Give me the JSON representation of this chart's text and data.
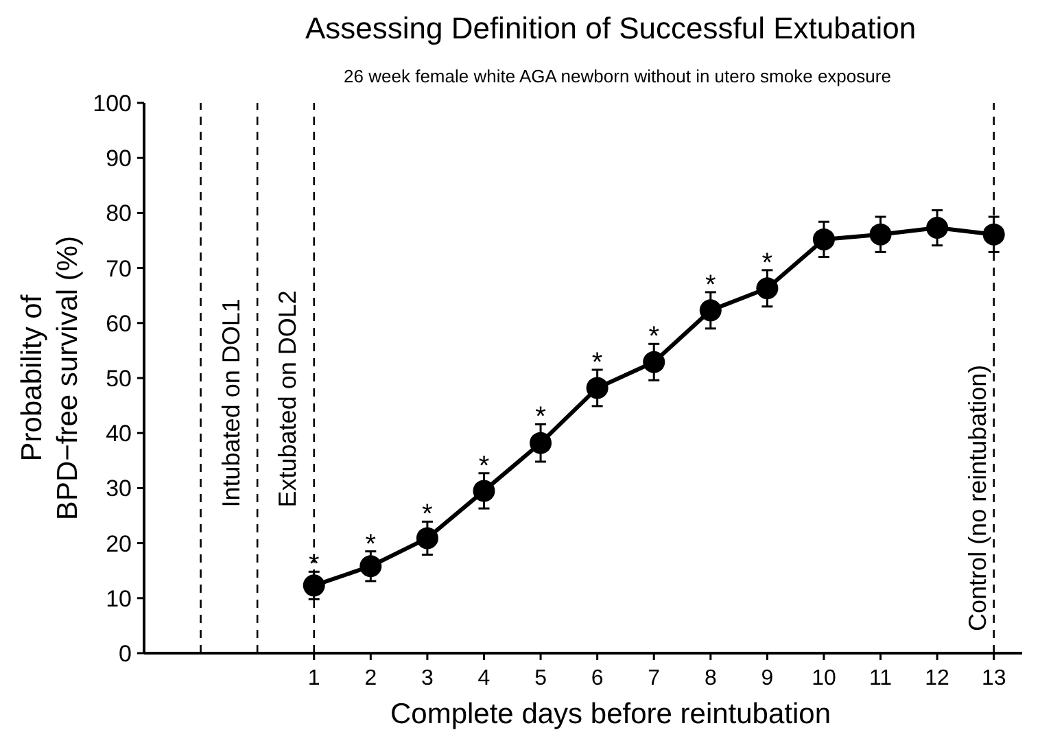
{
  "chart_data": {
    "type": "line",
    "title": "Assessing Definition of Successful Extubation",
    "subtitle": "26 week female white AGA newborn without in utero smoke exposure",
    "xlabel": "Complete days before reintubation",
    "ylabel": "Probability of\nBPD−free survival (%)",
    "x": [
      1,
      2,
      3,
      4,
      5,
      6,
      7,
      8,
      9,
      10,
      11,
      12,
      13
    ],
    "series": [
      {
        "color": "#000000",
        "values": [
          12.3,
          15.8,
          20.9,
          29.5,
          38.2,
          48.2,
          52.9,
          62.3,
          66.3,
          75.2,
          76.1,
          77.3,
          76.1
        ],
        "errors": [
          2.5,
          2.7,
          3.0,
          3.2,
          3.4,
          3.3,
          3.3,
          3.3,
          3.3,
          3.2,
          3.2,
          3.2,
          3.2
        ]
      }
    ],
    "xlim": [
      -2,
      13.5
    ],
    "xticks": [
      1,
      2,
      3,
      4,
      5,
      6,
      7,
      8,
      9,
      10,
      11,
      12,
      13
    ],
    "ylim": [
      0,
      100
    ],
    "yticks": [
      0,
      10,
      20,
      30,
      40,
      50,
      60,
      70,
      80,
      90,
      100
    ],
    "ref_lines": [
      {
        "axis": "x",
        "value": -1,
        "label": "Intubated on DOL1",
        "line_style": "dashed",
        "color": "#000000"
      },
      {
        "axis": "x",
        "value": 0,
        "label": "Extubated on DOL2",
        "line_style": "dashed",
        "color": "#000000"
      },
      {
        "axis": "x",
        "value": 1,
        "line_style": "dashed",
        "color": "#000000"
      },
      {
        "axis": "x",
        "value": 13,
        "label": "Control (no reintubation)",
        "line_style": "dashed",
        "color": "#000000"
      }
    ],
    "annotations": [
      {
        "text": "*",
        "x": 1,
        "y": 12.3
      },
      {
        "text": "*",
        "x": 2,
        "y": 15.8
      },
      {
        "text": "*",
        "x": 3,
        "y": 20.9
      },
      {
        "text": "*",
        "x": 4,
        "y": 29.5
      },
      {
        "text": "*",
        "x": 5,
        "y": 38.2
      },
      {
        "text": "*",
        "x": 6,
        "y": 48.2
      },
      {
        "text": "*",
        "x": 7,
        "y": 52.9
      },
      {
        "text": "*",
        "x": 8,
        "y": 62.3
      },
      {
        "text": "*",
        "x": 9,
        "y": 66.3
      }
    ],
    "grid": false,
    "marker": "circle",
    "line_style": "solid"
  }
}
